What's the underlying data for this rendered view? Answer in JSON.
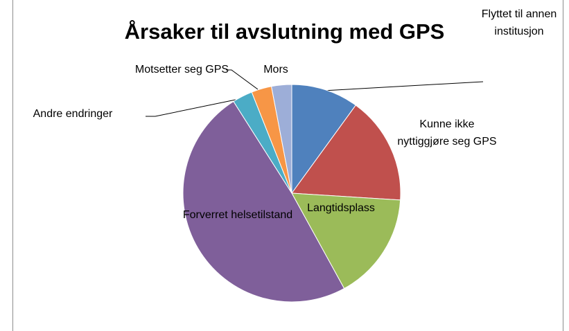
{
  "chart_data": {
    "type": "pie",
    "title": "Årsaker til avslutning med GPS",
    "categories": [
      "Flyttet til annen institusjon",
      "Kunne ikke nyttiggjøre seg GPS",
      "Langtidsplass",
      "Forverret helsetilstand",
      "Andre endringer",
      "Motsetter seg GPS",
      "Mors"
    ],
    "values": [
      10,
      16,
      16,
      49,
      3,
      3,
      3
    ],
    "colors": [
      "#4f81bd",
      "#c0504d",
      "#9bbb59",
      "#7f5f9a",
      "#4bacc6",
      "#f79646",
      "#9daed8"
    ]
  }
}
